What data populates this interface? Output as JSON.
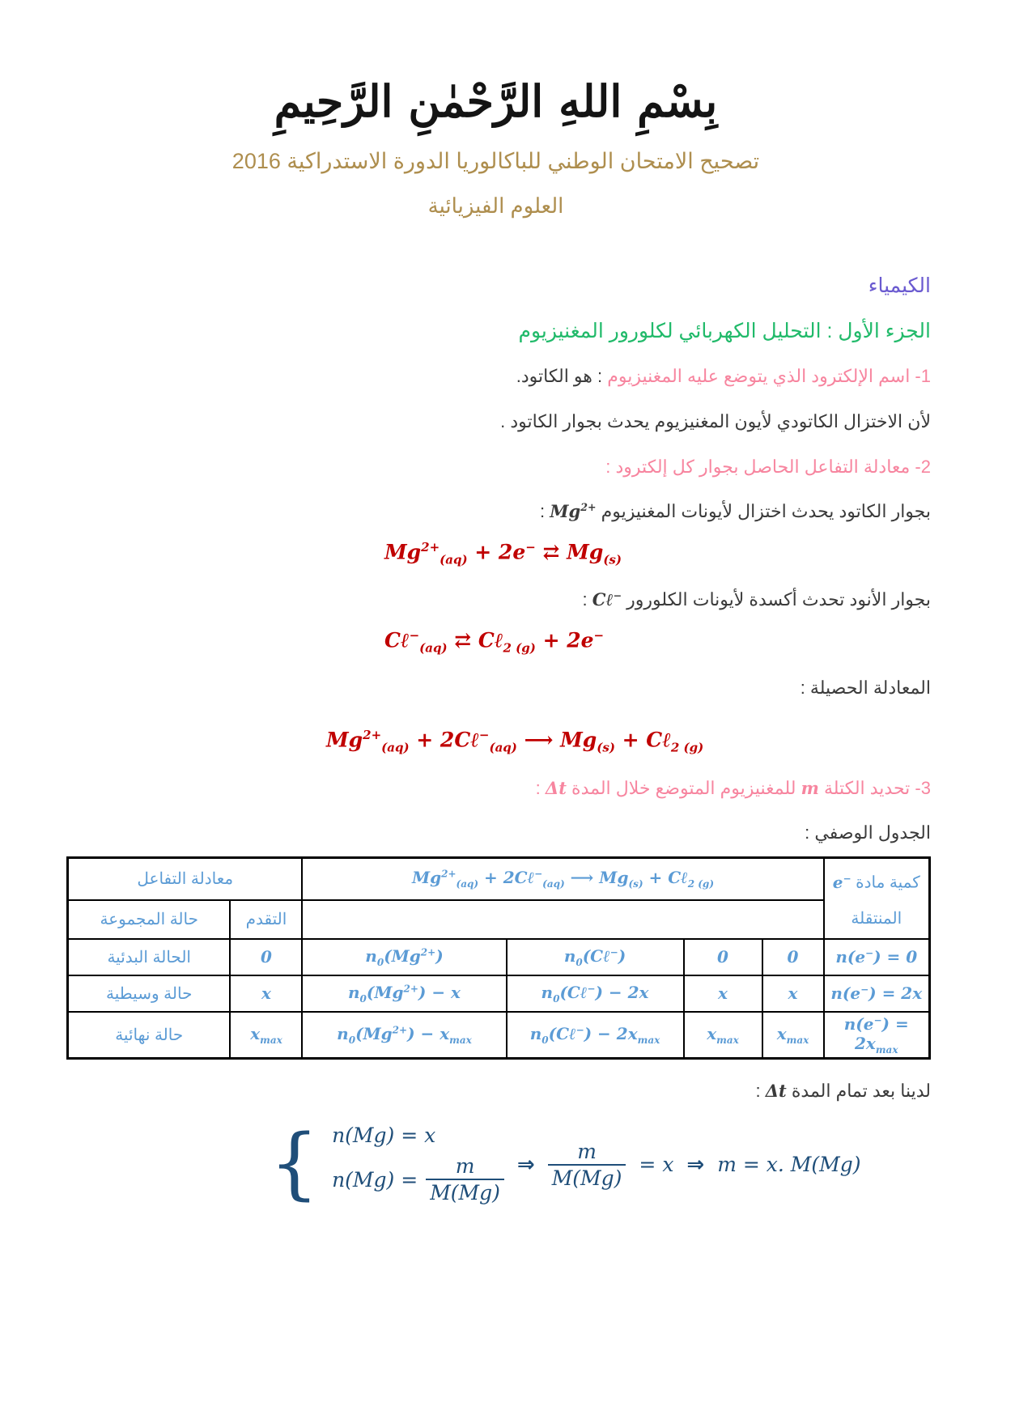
{
  "colors": {
    "gold": "#ae8e4e",
    "purple": "#6a5ad0",
    "green": "#21ba6a",
    "pink": "#f7859f",
    "equation_red": "#c00000",
    "table_blue": "#5b9bd5",
    "derivation_navy": "#1f4e79"
  },
  "header": {
    "bismillah": "بِسْمِ اللهِ الرَّحْمٰنِ الرَّحِيمِ",
    "title": "تصحيح الامتحان الوطني للباكالوريا الدورة الاستدراكية 2016",
    "subtitle": "العلوم الفيزيائية"
  },
  "chemistry": {
    "section_title": "الكيمياء",
    "part_title": "الجزء الأول : التحليل الكهربائي لكلورور المغنيزيوم",
    "q1": {
      "question": "1- اسم الإلكترود الذي يتوضع عليه المغنيزيوم",
      "answer": ": هو الكاتود.",
      "reason": "لأن الاختزال الكاتودي لأيون المغنيزيوم يحدث بجوار الكاتود ."
    },
    "q2": {
      "heading": "2- معادلة التفاعل الحاصل بجوار كل إلكترود :",
      "cathode_text": "بجوار الكاتود يحدث اختزال لأيونات المغنيزيوم",
      "cathode_ion": "Mg^{2+}",
      "colon": ":",
      "cathode_equation": "Mg^{2+}_{(aq)} + 2e^{−} ⇄ Mg_{(s)}",
      "anode_text": "بجوار الأنود تحدث أكسدة لأيونات الكلورور",
      "anode_ion": "Cℓ^{−}",
      "anode_equation": "Cℓ^{−}_{(aq)} ⇄ Cℓ_{2 (g)} + 2e^{−}",
      "net_label": "المعادلة الحصيلة :",
      "net_equation": "Mg^{2+}_{(aq)} + 2Cℓ^{−}_{(aq)} ⟶ Mg_{(s)} + Cℓ_{2 (g)}"
    },
    "q3": {
      "part1": "3- تحديد الكتلة",
      "mass_symbol": "m",
      "part2": "للمغنيزيوم المتوضع خلال المدة",
      "duration_symbol": "Δt",
      "colon": ":",
      "table_caption": "الجدول الوصفي :"
    },
    "table": {
      "qty_header_text": "كمية مادة",
      "qty_header_symbol": "e^{−}",
      "qty_header_line2": "المنتقلة",
      "equation": "Mg^{2+}_{(aq)} + 2Cℓ^{−}_{(aq)} ⟶ Mg_{(s)} + Cℓ_{2 (g)}",
      "reaction_header": "معادلة التفاعل",
      "progress_header": "التقدم",
      "state_header": "حالة المجموعة",
      "rows": [
        {
          "state": "الحالة البدئية",
          "progress": "0",
          "mg": "n_{0}(Mg^{2+})",
          "cl": "n_{0}(Cℓ^{−})",
          "mg_s": "0",
          "cl2": "0",
          "electrons": "n(e^{−}) = 0"
        },
        {
          "state": "حالة وسيطية",
          "progress": "x",
          "mg": "n_{0}(Mg^{2+}) − x",
          "cl": "n_{0}(Cℓ^{−}) − 2x",
          "mg_s": "x",
          "cl2": "x",
          "electrons": "n(e^{−}) = 2x"
        },
        {
          "state": "حالة نهائية",
          "progress": "x_{max}",
          "mg": "n_{0}(Mg^{2+}) − x_{max}",
          "cl": "n_{0}(Cℓ^{−}) − 2x_{max}",
          "mg_s": "x_{max}",
          "cl2": "x_{max}",
          "electrons": "n(e^{−}) = 2x_{max}"
        }
      ]
    },
    "conclusion": {
      "text": "لدينا بعد تمام المدة",
      "duration_symbol": "Δt",
      "colon": ":"
    },
    "derivation": {
      "case1": "n(Mg) = x",
      "case2_lhs": "n(Mg) =",
      "frac1_num": "m",
      "frac1_den": "M(Mg)",
      "implies1": "⇒",
      "frac2_num": "m",
      "frac2_den": "M(Mg)",
      "equals_x": "= x",
      "implies2": "⇒",
      "result": "m = x. M(Mg)"
    }
  }
}
